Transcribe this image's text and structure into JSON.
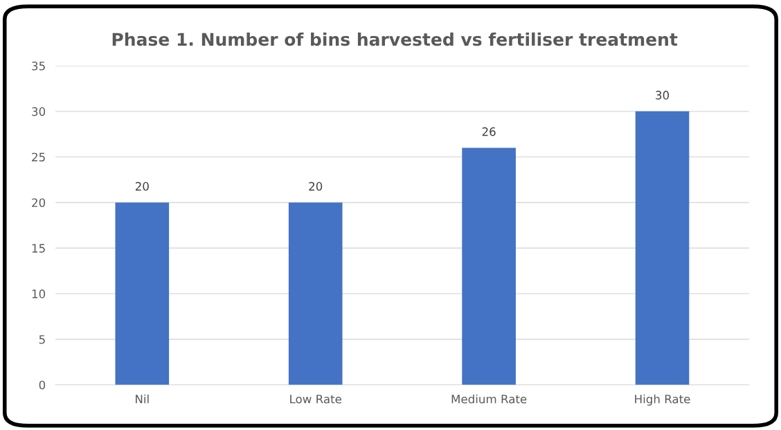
{
  "chart_data": {
    "type": "bar",
    "title": "Phase 1. Number of bins harvested vs fertiliser treatment",
    "categories": [
      "Nil",
      "Low Rate",
      "Medium Rate",
      "High Rate"
    ],
    "values": [
      20,
      20,
      26,
      30
    ],
    "color": "#4472c4",
    "ylim": [
      0,
      35
    ],
    "yticks": [
      0,
      5,
      10,
      15,
      20,
      25,
      30,
      35
    ],
    "grid": "y",
    "data_labels": true
  }
}
